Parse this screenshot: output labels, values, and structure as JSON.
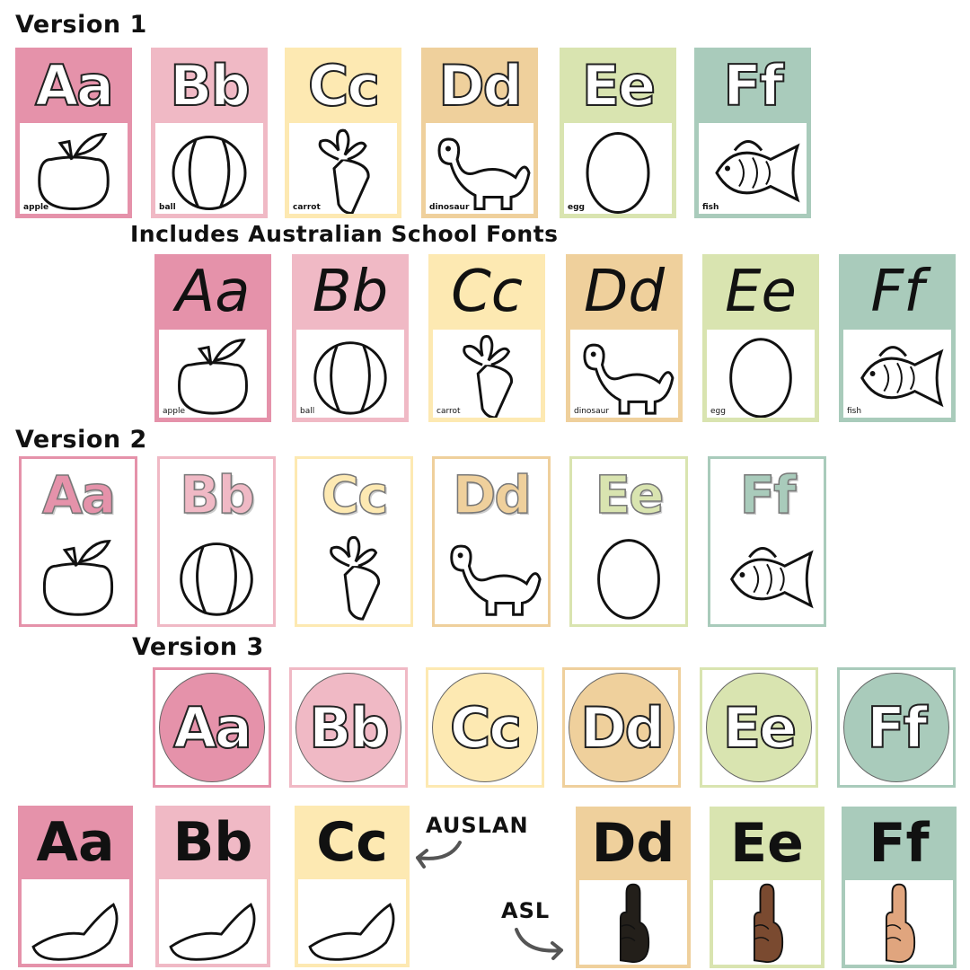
{
  "titles": {
    "version1": "Version 1",
    "school_fonts": "Includes Australian School Fonts",
    "version2": "Version 2",
    "version3": "Version 3"
  },
  "annotations": {
    "auslan": "AUSLAN",
    "asl": "ASL",
    "arrow_color": "#555555"
  },
  "letters": [
    {
      "letter": "Aa",
      "word": "apple",
      "color": "#e592aa",
      "picture": "apple-icon",
      "hand_color": "#ffffff"
    },
    {
      "letter": "Bb",
      "word": "ball",
      "color": "#f0b9c5",
      "picture": "ball-icon",
      "hand_color": "#ffffff"
    },
    {
      "letter": "Cc",
      "word": "carrot",
      "color": "#fde9b2",
      "picture": "carrot-icon",
      "hand_color": "#ffffff"
    },
    {
      "letter": "Dd",
      "word": "dinosaur",
      "color": "#efd09c",
      "picture": "dinosaur-icon",
      "hand_color": "#231f1a"
    },
    {
      "letter": "Ee",
      "word": "egg",
      "color": "#d9e4b0",
      "picture": "egg-icon",
      "hand_color": "#7a4a30"
    },
    {
      "letter": "Ff",
      "word": "fish",
      "color": "#a9cbbb",
      "picture": "fish-icon",
      "hand_color": "#e0a57e"
    }
  ]
}
